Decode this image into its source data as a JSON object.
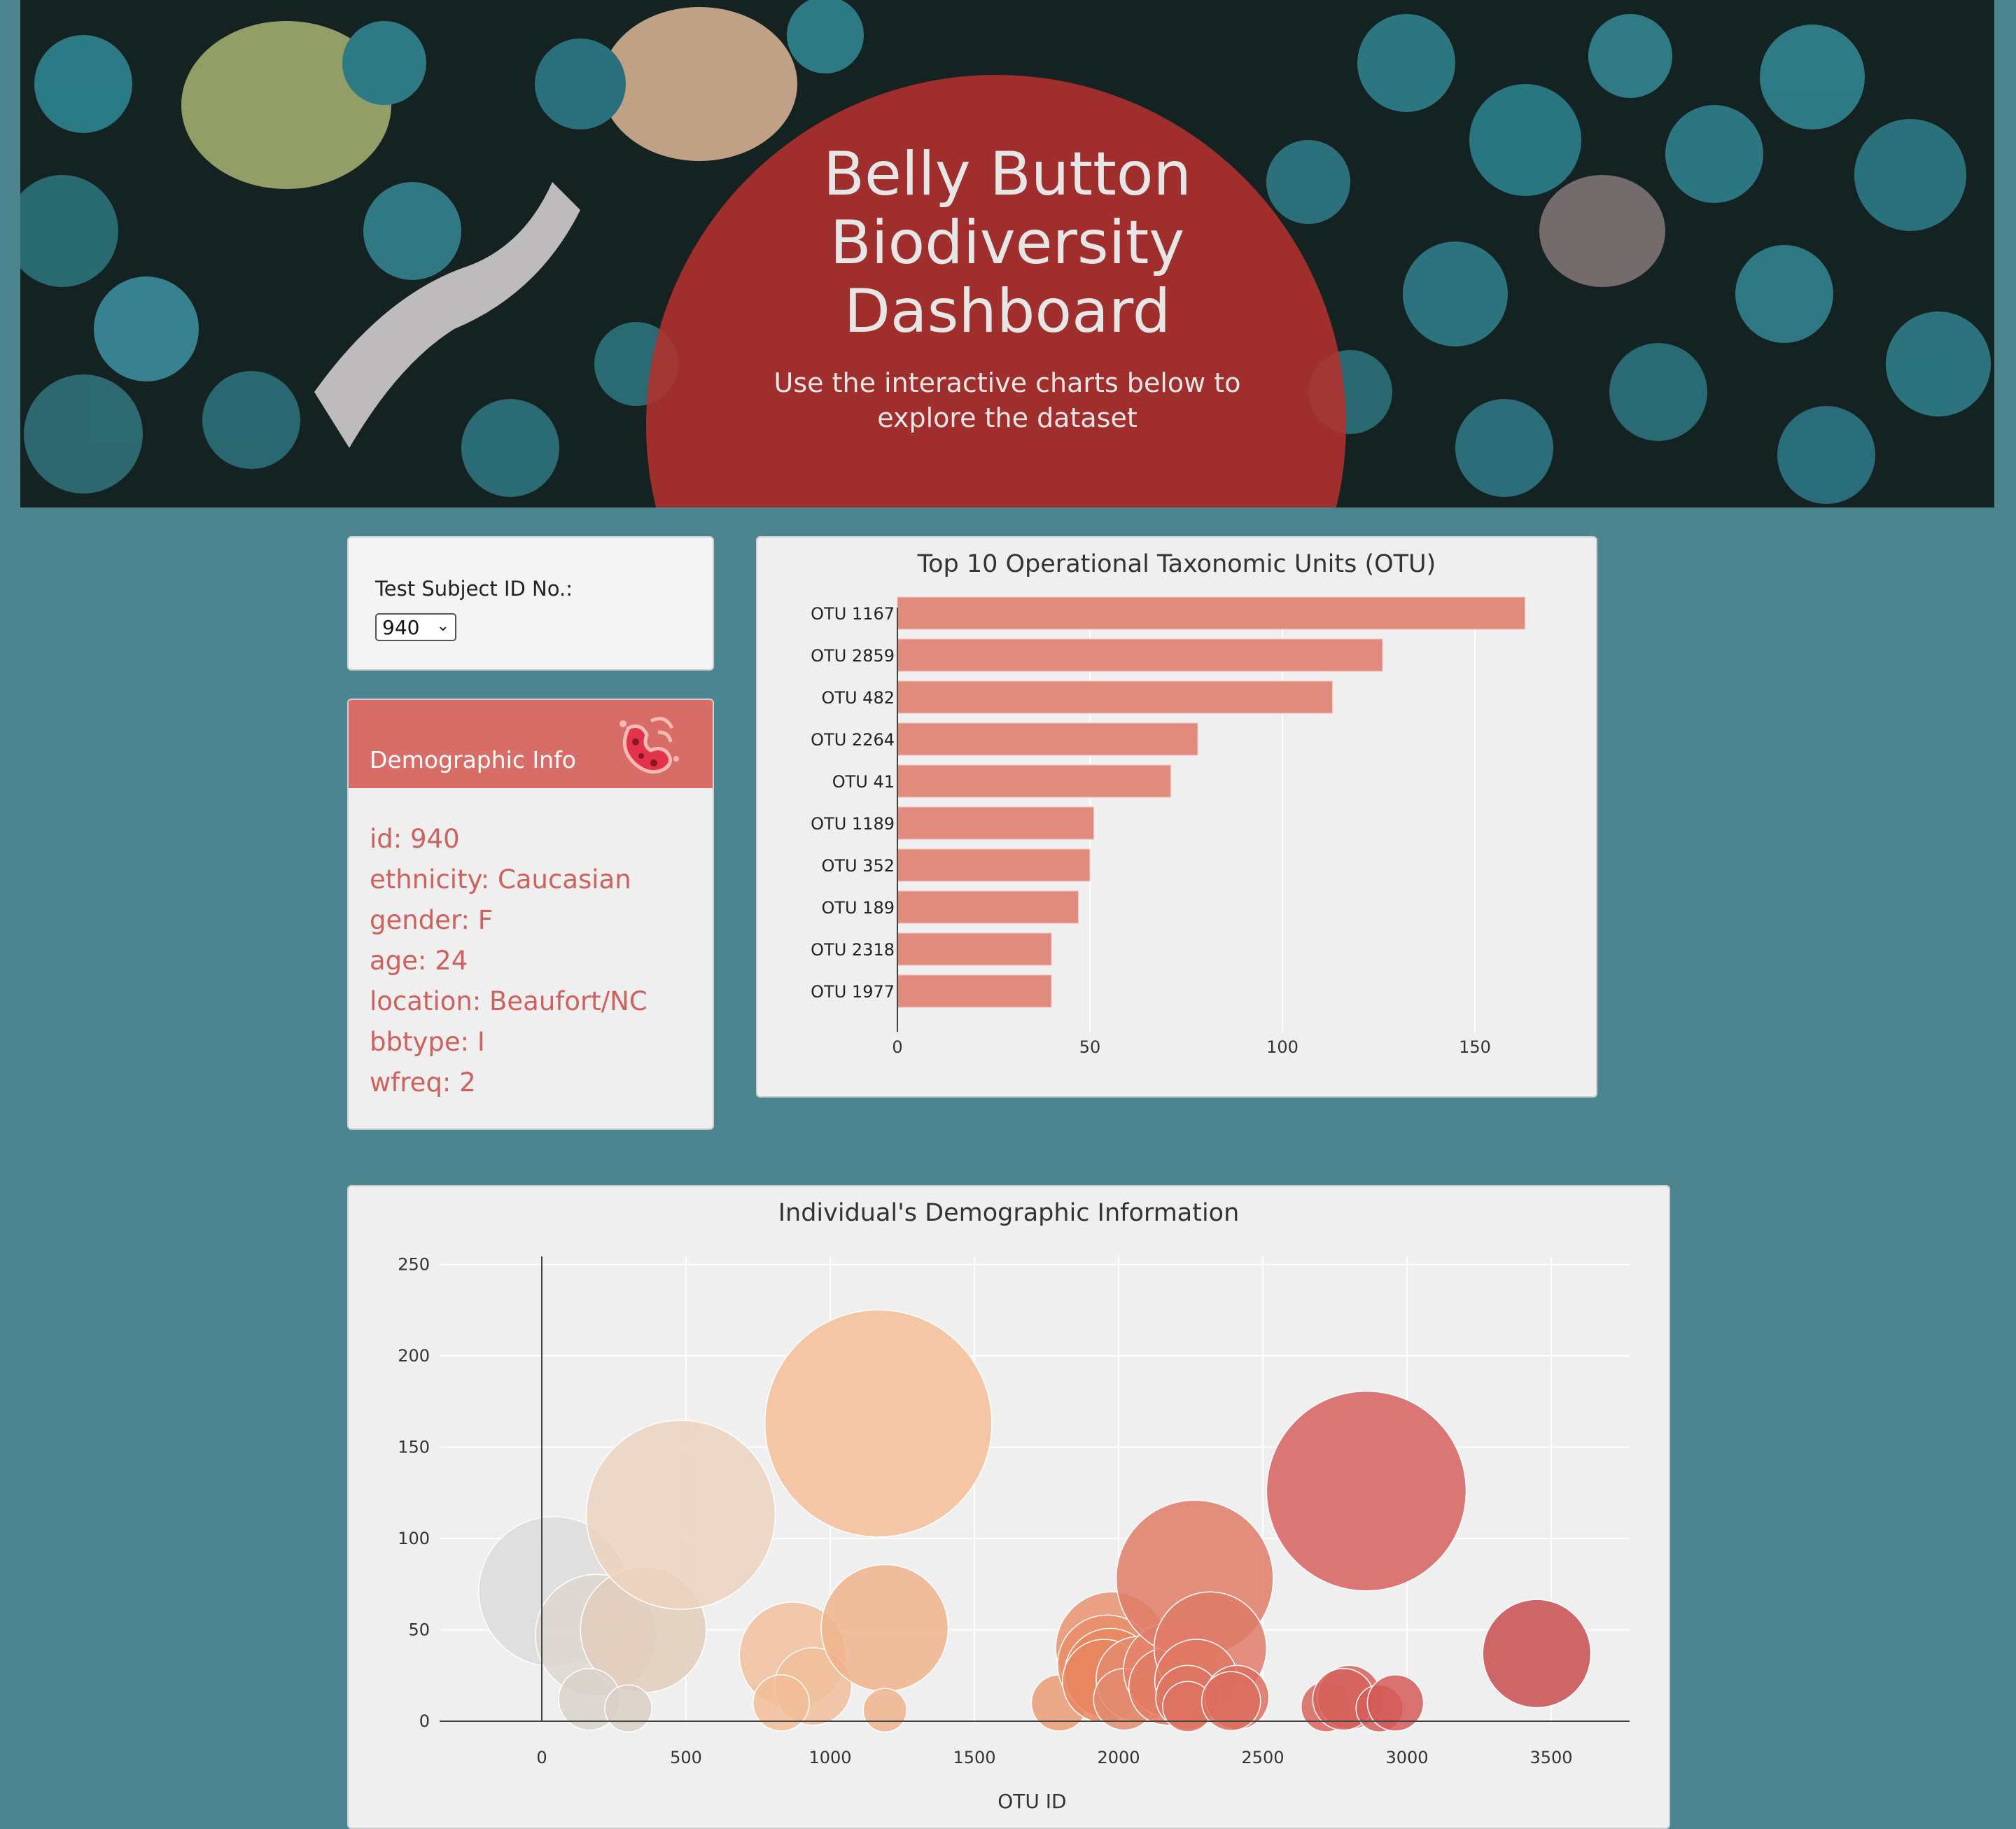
{
  "header": {
    "title": "Belly Button Biodiversity Dashboard",
    "subtitle": "Use the interactive charts below to explore the dataset"
  },
  "selector": {
    "label": "Test Subject ID No.:",
    "selected": "940"
  },
  "demographic": {
    "title": "Demographic Info",
    "icon": "bacteria-icon",
    "lines": [
      "id: 940",
      "ethnicity: Caucasian",
      "gender: F",
      "age: 24",
      "location: Beaufort/NC",
      "bbtype: I",
      "wfreq: 2"
    ]
  },
  "colors": {
    "background": "#4c8590",
    "bar": "#e08b7d",
    "demo_header": "#d86c67",
    "demo_text": "#d0605c"
  },
  "chart_data": [
    {
      "type": "bar",
      "orientation": "horizontal",
      "title": "Top 10 Operational Taxonomic Units (OTU)",
      "categories": [
        "OTU 1167",
        "OTU 2859",
        "OTU 482",
        "OTU 2264",
        "OTU 41",
        "OTU 1189",
        "OTU 352",
        "OTU 189",
        "OTU 2318",
        "OTU 1977"
      ],
      "values": [
        163,
        126,
        113,
        78,
        71,
        51,
        50,
        47,
        40,
        40
      ],
      "xlim": [
        0,
        175
      ],
      "xticks": [
        0,
        50,
        100,
        150
      ],
      "grid": true
    },
    {
      "type": "scatter",
      "subtype": "bubble",
      "title": "Individual's Demographic Information",
      "xlabel": "OTU ID",
      "xlim": [
        -380,
        3780
      ],
      "ylim": [
        -8,
        262
      ],
      "xticks": [
        0,
        500,
        1000,
        1500,
        2000,
        2500,
        3000,
        3500
      ],
      "yticks": [
        0,
        50,
        100,
        150,
        200,
        250
      ],
      "grid": true,
      "points": [
        {
          "x": 41,
          "y": 71,
          "color": "#dcdcdc"
        },
        {
          "x": 189,
          "y": 47,
          "color": "#ddd7cf"
        },
        {
          "x": 352,
          "y": 50,
          "color": "#e2ccbb"
        },
        {
          "x": 482,
          "y": 113,
          "color": "#ecd3c0"
        },
        {
          "x": 165,
          "y": 12,
          "color": "#d9d2cb"
        },
        {
          "x": 300,
          "y": 7,
          "color": "#d9cfc5"
        },
        {
          "x": 870,
          "y": 36,
          "color": "#f1c09e"
        },
        {
          "x": 940,
          "y": 19,
          "color": "#f1be9b"
        },
        {
          "x": 830,
          "y": 10,
          "color": "#f1bd98"
        },
        {
          "x": 1167,
          "y": 163,
          "color": "#f4be99"
        },
        {
          "x": 1189,
          "y": 51,
          "color": "#efb48c"
        },
        {
          "x": 1190,
          "y": 6,
          "color": "#efb48c"
        },
        {
          "x": 1795,
          "y": 10,
          "color": "#eb9c76"
        },
        {
          "x": 1977,
          "y": 40,
          "color": "#e99270"
        },
        {
          "x": 1960,
          "y": 31,
          "color": "#e98e6a"
        },
        {
          "x": 1970,
          "y": 26,
          "color": "#e7875f"
        },
        {
          "x": 1950,
          "y": 22,
          "color": "#e88660"
        },
        {
          "x": 2070,
          "y": 23,
          "color": "#e48a6d"
        },
        {
          "x": 2020,
          "y": 12,
          "color": "#e38b6e"
        },
        {
          "x": 2180,
          "y": 28,
          "color": "#e4816a"
        },
        {
          "x": 2170,
          "y": 19,
          "color": "#e27c64"
        },
        {
          "x": 2264,
          "y": 78,
          "color": "#e07c68"
        },
        {
          "x": 2318,
          "y": 40,
          "color": "#df7b68"
        },
        {
          "x": 2270,
          "y": 22,
          "color": "#df7863"
        },
        {
          "x": 2240,
          "y": 13,
          "color": "#dd7461"
        },
        {
          "x": 2240,
          "y": 8,
          "color": "#dd7260"
        },
        {
          "x": 2410,
          "y": 13,
          "color": "#dc6f5f"
        },
        {
          "x": 2390,
          "y": 11,
          "color": "#dc6e5f"
        },
        {
          "x": 2720,
          "y": 8,
          "color": "#d8655d"
        },
        {
          "x": 2800,
          "y": 13,
          "color": "#d6615c"
        },
        {
          "x": 2780,
          "y": 12,
          "color": "#d6615c"
        },
        {
          "x": 2859,
          "y": 126,
          "color": "#d6605e"
        },
        {
          "x": 2905,
          "y": 7,
          "color": "#d55c5a"
        },
        {
          "x": 2960,
          "y": 10,
          "color": "#d45a58"
        },
        {
          "x": 3450,
          "y": 37,
          "color": "#c84e50"
        }
      ]
    }
  ]
}
